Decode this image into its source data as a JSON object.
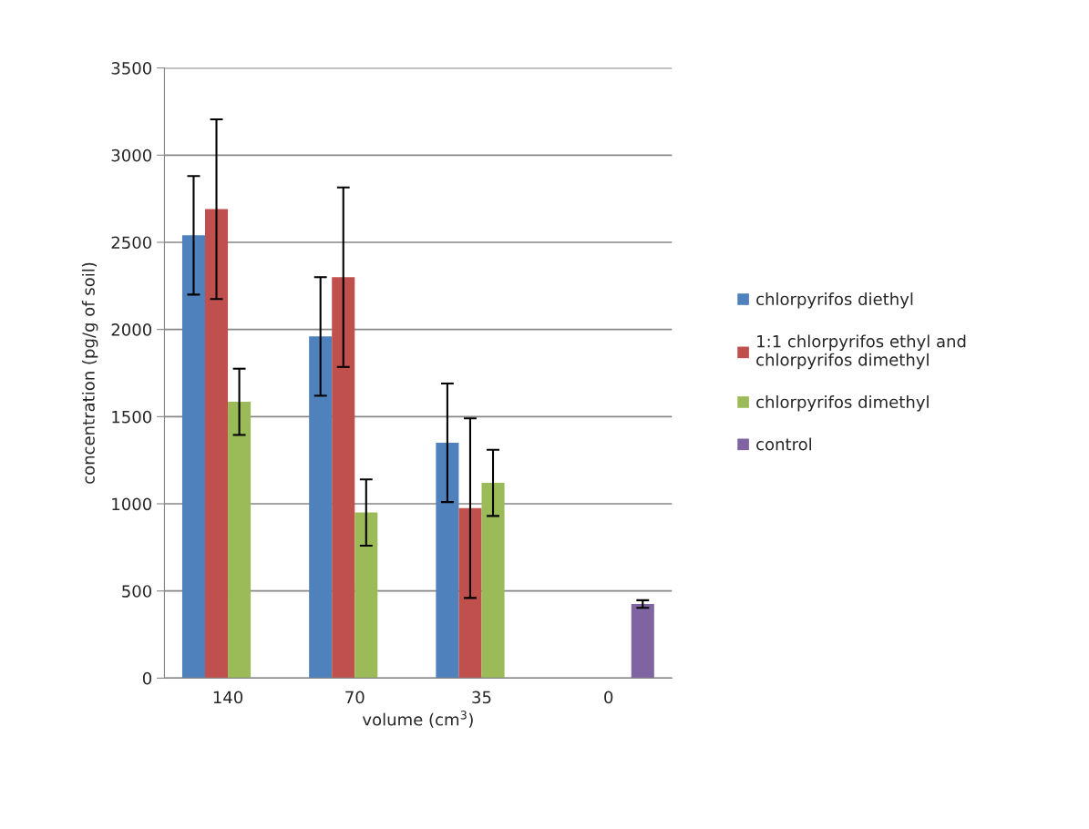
{
  "chart_data": {
    "type": "bar",
    "xlabel": "volume (cm$^{3}$)",
    "ylabel": "concentration (pg/g of soil)",
    "categories": [
      "140",
      "70",
      "35",
      "0"
    ],
    "series": [
      {
        "name": "chlorpyrifos diethyl",
        "color": "#4f81bd",
        "values": [
          2540,
          1960,
          1350,
          null
        ],
        "errors": [
          340,
          340,
          340,
          null
        ]
      },
      {
        "name": "1:1 chlorpyrifos ethyl and\nchlorpyrifos dimethyl",
        "color": "#c0504d",
        "values": [
          2690,
          2300,
          975,
          null
        ],
        "errors": [
          515,
          515,
          515,
          null
        ]
      },
      {
        "name": "chlorpyrifos dimethyl",
        "color": "#9bbb59",
        "values": [
          1585,
          950,
          1120,
          null
        ],
        "errors": [
          190,
          190,
          190,
          null
        ]
      },
      {
        "name": "control",
        "color": "#8064a2",
        "values": [
          null,
          null,
          null,
          425
        ],
        "errors": [
          null,
          null,
          null,
          22
        ]
      }
    ],
    "ylim": [
      0,
      3500
    ],
    "yticks": [
      0,
      500,
      1000,
      1500,
      2000,
      2500,
      3000,
      3500
    ],
    "grid": "y",
    "legend": "right"
  }
}
